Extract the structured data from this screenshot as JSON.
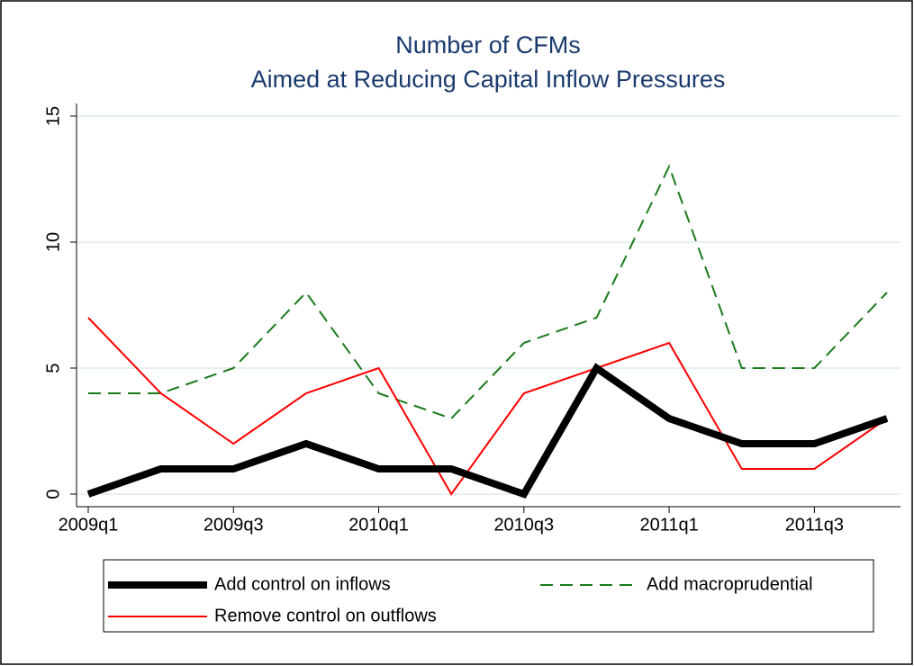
{
  "chart_data": {
    "type": "line",
    "title": [
      "Number of CFMs",
      "Aimed at Reducing Capital Inflow Pressures"
    ],
    "categories": [
      "2009q1",
      null,
      "2009q3",
      null,
      "2010q1",
      null,
      "2010q3",
      null,
      "2011q1",
      null,
      "2011q3",
      null
    ],
    "series": [
      {
        "name": "Add control on inflows",
        "color": "#000000",
        "values": [
          0,
          1,
          1,
          2,
          1,
          1,
          0,
          5,
          3,
          2,
          2,
          3
        ]
      },
      {
        "name": "Add macroprudential",
        "color": "#1a7a1a",
        "values": [
          4,
          4,
          5,
          8,
          4,
          3,
          6,
          7,
          13,
          5,
          5,
          8
        ]
      },
      {
        "name": "Remove control on outflows",
        "color": "#ff0000",
        "values": [
          7,
          4,
          2,
          4,
          5,
          0,
          4,
          5,
          6,
          1,
          1,
          3
        ]
      }
    ],
    "ylim": [
      -0.5,
      15.5
    ],
    "yticks": [
      0,
      5,
      10,
      15
    ],
    "grid": true
  }
}
